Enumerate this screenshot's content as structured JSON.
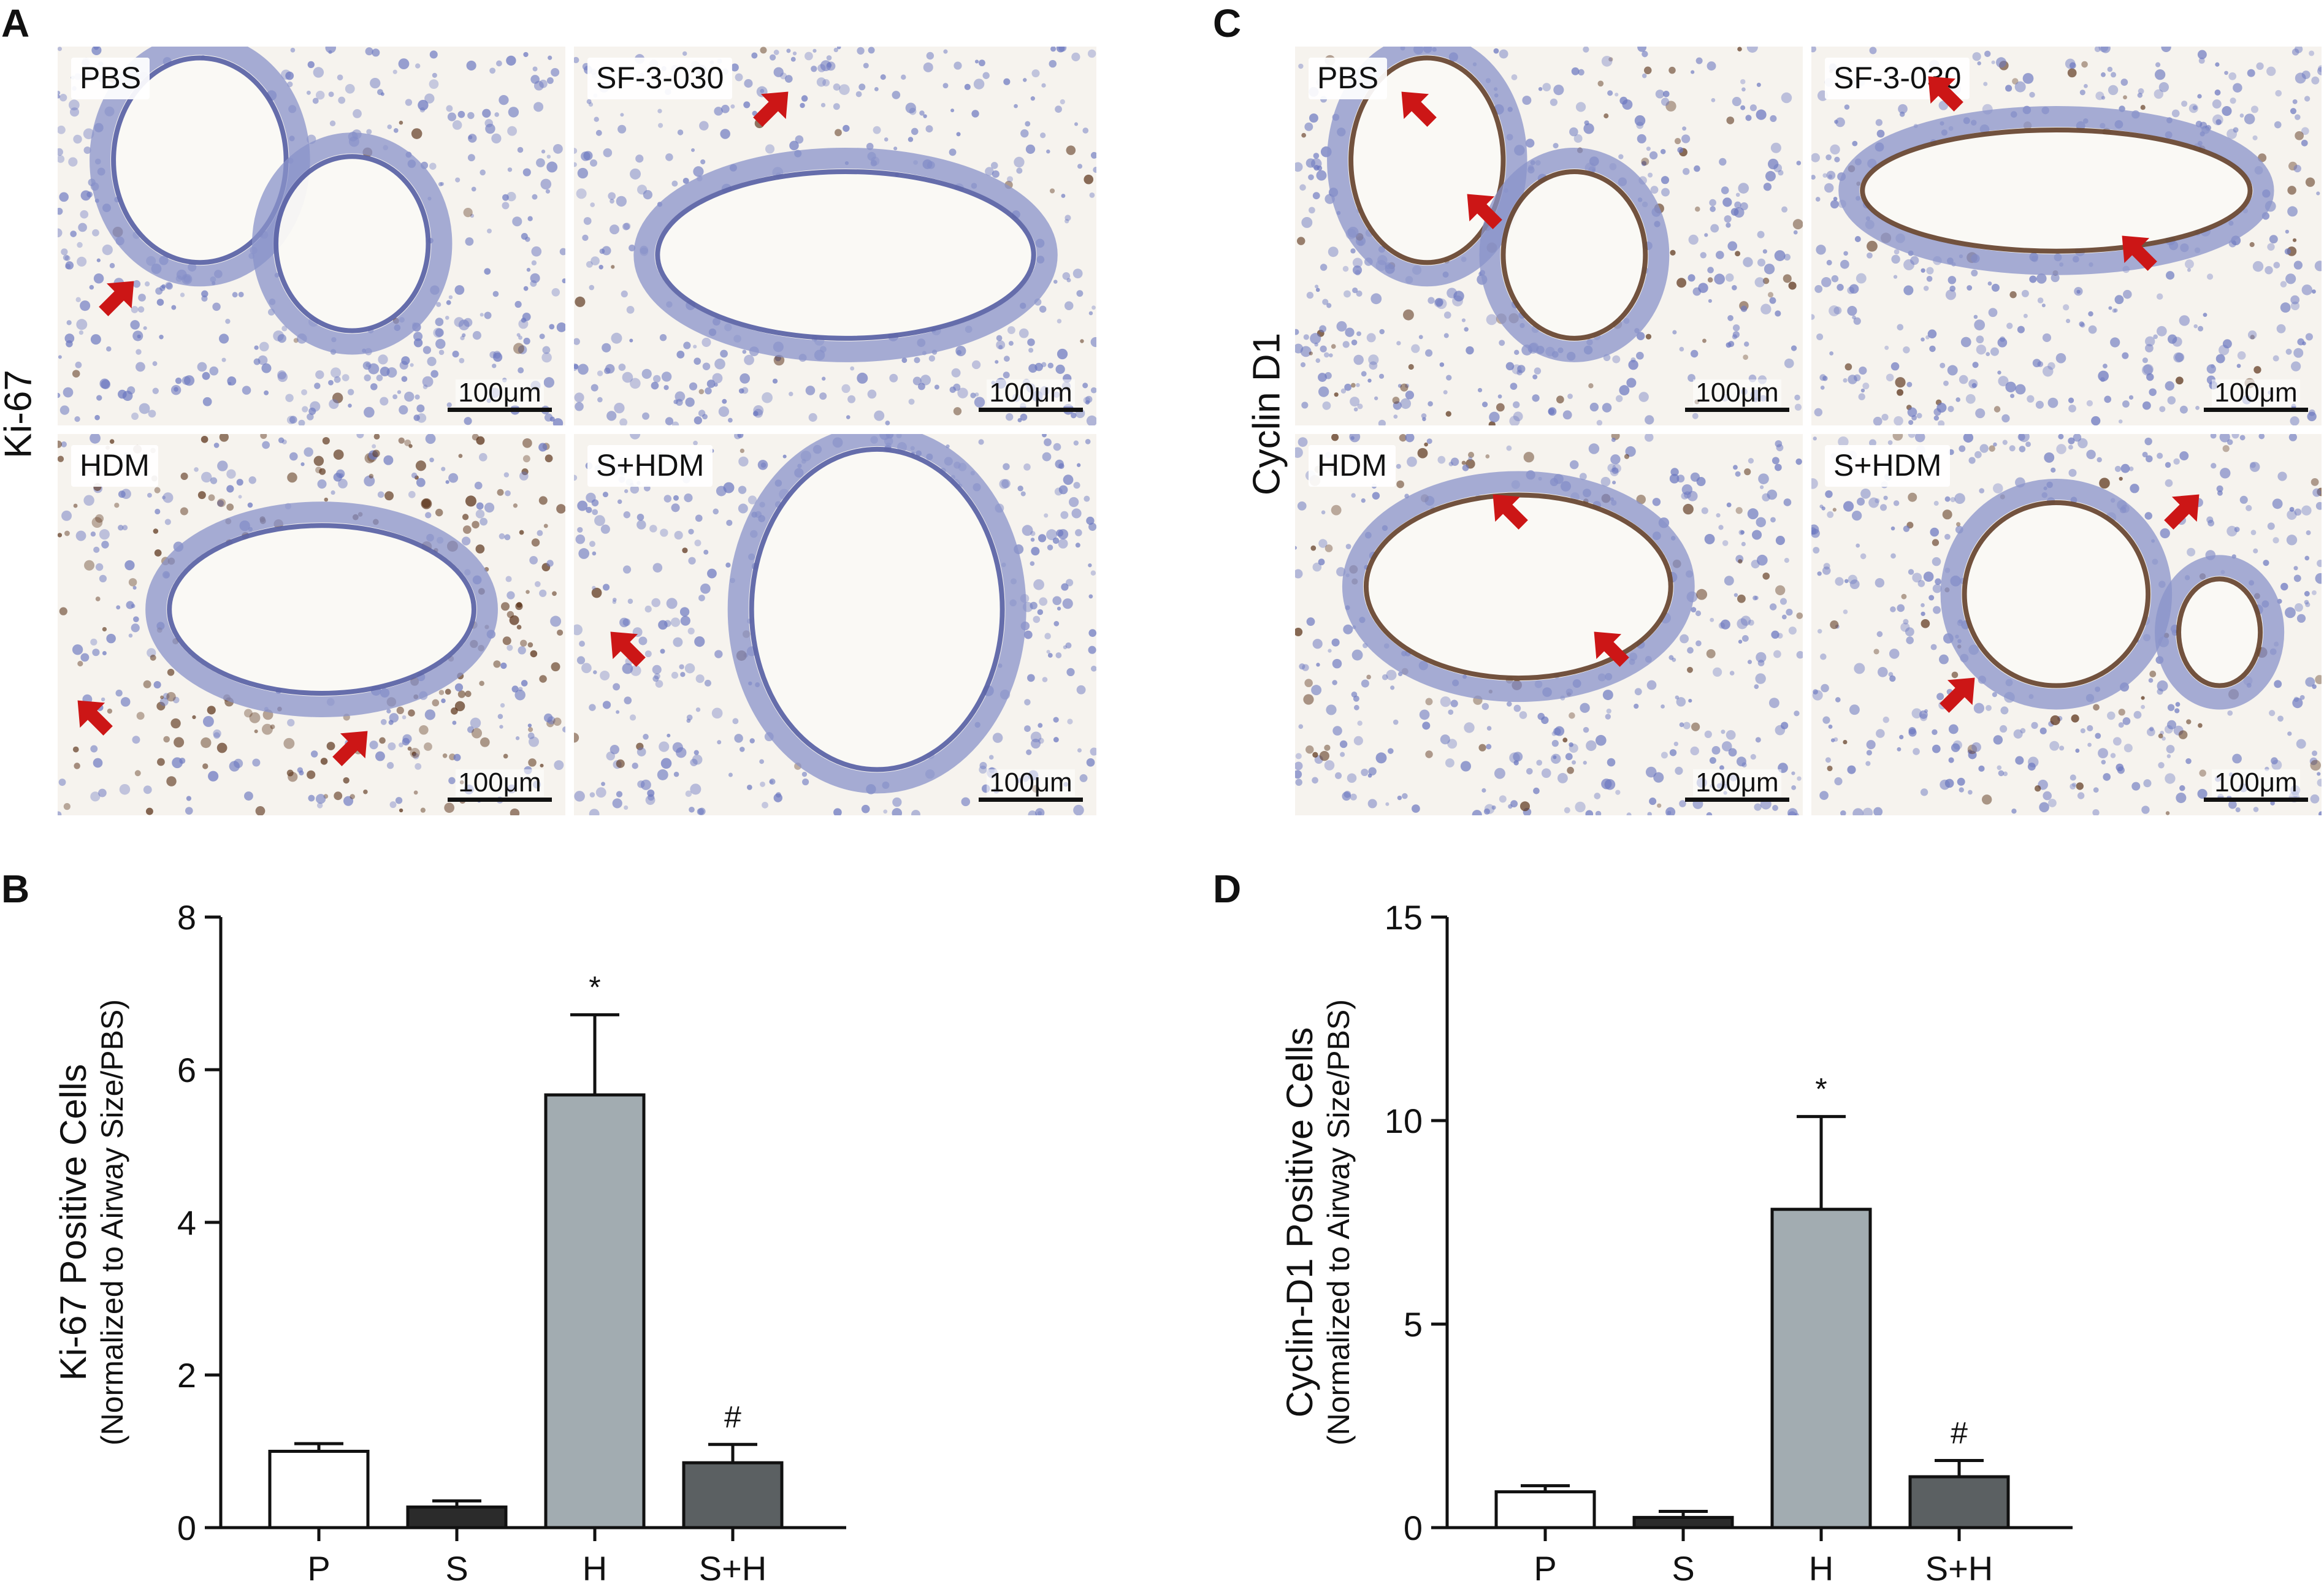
{
  "panels": {
    "A": {
      "letter": "A",
      "row_label": "Ki-67",
      "images": [
        {
          "label": "PBS",
          "scale": "100μm",
          "arrows": 1
        },
        {
          "label": "SF-3-030",
          "scale": "100μm",
          "arrows": 1
        },
        {
          "label": "HDM",
          "scale": "100μm",
          "arrows": 2
        },
        {
          "label": "S+HDM",
          "scale": "100μm",
          "arrows": 1
        }
      ]
    },
    "C": {
      "letter": "C",
      "row_label": "Cyclin D1",
      "images": [
        {
          "label": "PBS",
          "scale": "100μm",
          "arrows": 2
        },
        {
          "label": "SF-3-030",
          "scale": "100μm",
          "arrows": 2
        },
        {
          "label": "HDM",
          "scale": "100μm",
          "arrows": 2
        },
        {
          "label": "S+HDM",
          "scale": "100μm",
          "arrows": 2
        }
      ]
    },
    "B": {
      "letter": "B"
    },
    "D": {
      "letter": "D"
    }
  },
  "colors": {
    "arrow": "#cc1616",
    "stain_blue": "#6c78c0",
    "stain_brown": "#5a3218",
    "bar_P": "#ffffff",
    "bar_S": "#2b2b2b",
    "bar_H": "#a2acb1",
    "bar_SH": "#5b6062"
  },
  "chart_data": [
    {
      "type": "bar",
      "panel": "B",
      "categories": [
        "P",
        "S",
        "H",
        "S+H"
      ],
      "values": [
        1.0,
        0.27,
        5.67,
        0.85
      ],
      "errors": [
        0.1,
        0.08,
        1.05,
        0.24
      ],
      "annotations": [
        "",
        "",
        "*",
        "#"
      ],
      "ylabel_line1": "Ki-67 Positive Cells",
      "ylabel_line2": "(Normalized to Airway Size/PBS)",
      "xlabel": "",
      "ylim": [
        0,
        8
      ],
      "yticks": [
        0,
        2,
        4,
        6,
        8
      ],
      "grid": false
    },
    {
      "type": "bar",
      "panel": "D",
      "categories": [
        "P",
        "S",
        "H",
        "S+H"
      ],
      "values": [
        0.88,
        0.25,
        7.82,
        1.25
      ],
      "errors": [
        0.15,
        0.15,
        2.28,
        0.4
      ],
      "annotations": [
        "",
        "",
        "*",
        "#"
      ],
      "ylabel_line1": "Cyclin-D1 Positive Cells",
      "ylabel_line2": "(Normalized to Airway Size/PBS)",
      "xlabel": "",
      "ylim": [
        0,
        15
      ],
      "yticks": [
        0,
        5,
        10,
        15
      ],
      "grid": false
    }
  ]
}
